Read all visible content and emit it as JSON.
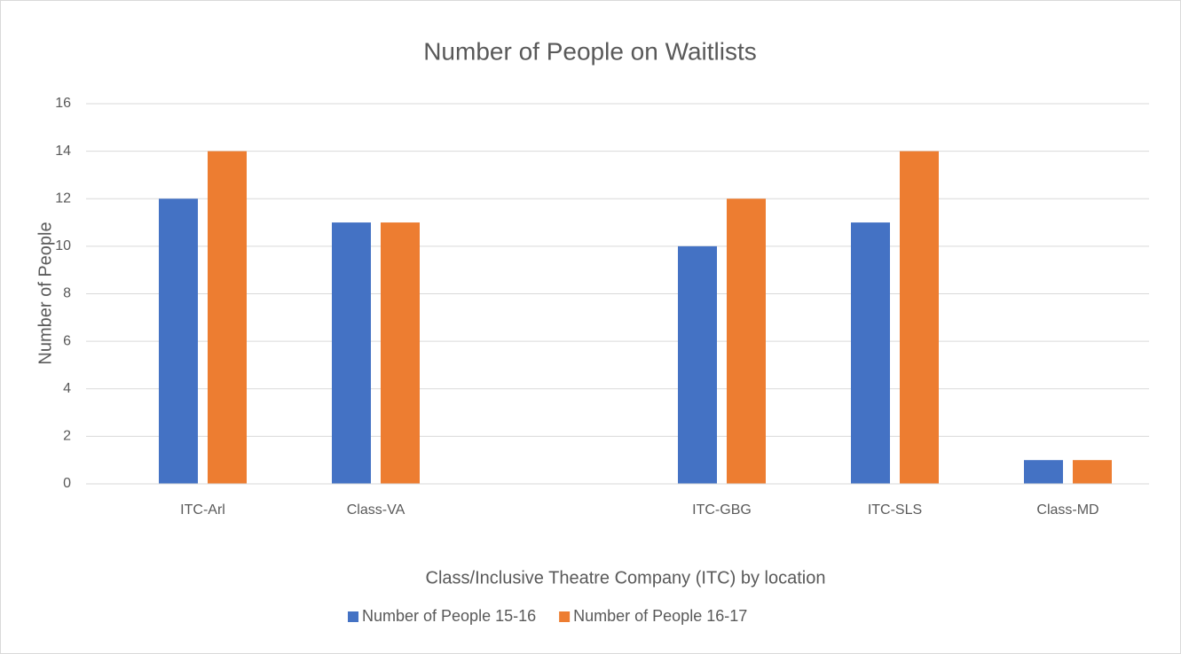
{
  "chart_data": {
    "type": "bar",
    "title": "Number of People on Waitlists",
    "x_label": "Class/Inclusive Theatre Company (ITC) by location",
    "y_label": "Number of People",
    "categories": [
      "ITC-Arl",
      "Class-VA",
      null,
      "ITC-GBG",
      "ITC-SLS",
      "Class-MD"
    ],
    "series": [
      {
        "name": "Number of People 15-16",
        "color": "#4472c4",
        "values": [
          12,
          11,
          null,
          10,
          11,
          1
        ]
      },
      {
        "name": "Number of People 16-17",
        "color": "#ed7d31",
        "values": [
          14,
          11,
          null,
          12,
          14,
          1
        ]
      }
    ],
    "ylim": [
      0,
      16
    ],
    "yticks": [
      0,
      2,
      4,
      6,
      8,
      10,
      12,
      14,
      16
    ],
    "grid": true,
    "legend": "bottom"
  }
}
